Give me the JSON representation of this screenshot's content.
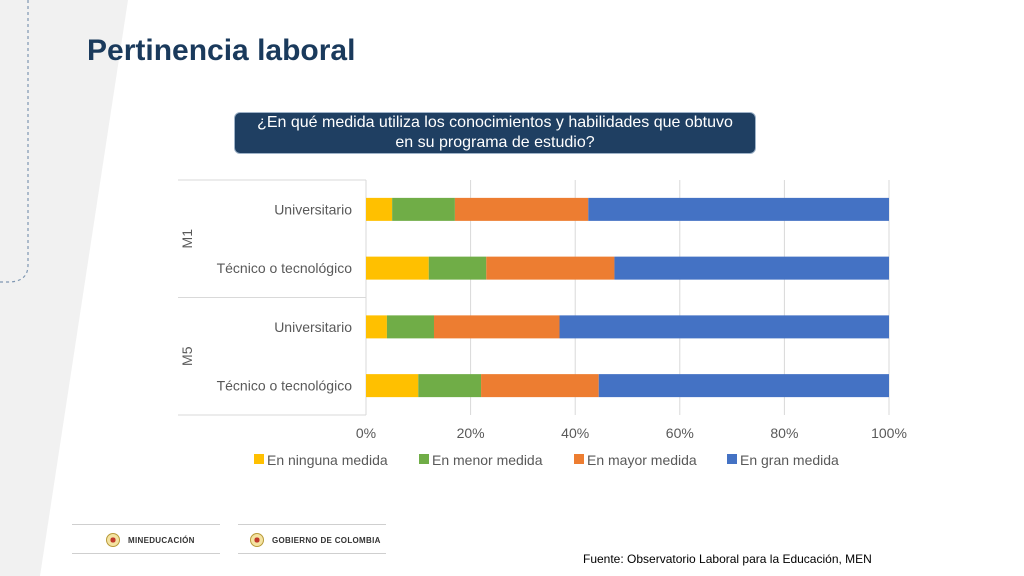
{
  "title": "Pertinencia laboral",
  "question": "¿En qué medida utiliza los conocimientos y habilidades que obtuvo en su programa de estudio?",
  "source": "Fuente: Observatorio Laboral para la Educación, MEN",
  "logos": {
    "mineducacion": "MINEDUCACIÓN",
    "gobierno": "GOBIERNO DE COLOMBIA"
  },
  "chart_data": {
    "type": "bar",
    "orientation": "horizontal",
    "stacked": "percent",
    "groups": [
      {
        "label": "M1",
        "categories": [
          "Universitario",
          "Técnico o tecnológico"
        ]
      },
      {
        "label": "M5",
        "categories": [
          "Universitario",
          "Técnico o tecnológico"
        ]
      }
    ],
    "series": [
      {
        "name": "En ninguna medida",
        "color": "#FFC000",
        "values": [
          5,
          12,
          4,
          10
        ]
      },
      {
        "name": "En menor medida",
        "color": "#70AD47",
        "values": [
          12,
          11,
          9,
          12
        ]
      },
      {
        "name": "En mayor medida",
        "color": "#ED7D31",
        "values": [
          25.5,
          24.5,
          24,
          22.5
        ]
      },
      {
        "name": "En gran medida",
        "color": "#4472C4",
        "values": [
          57.5,
          52.5,
          63,
          55.5
        ]
      }
    ],
    "xlim": [
      0,
      100
    ],
    "xticks": [
      "0%",
      "20%",
      "40%",
      "60%",
      "80%",
      "100%"
    ],
    "grid": true,
    "legend": "bottom"
  }
}
